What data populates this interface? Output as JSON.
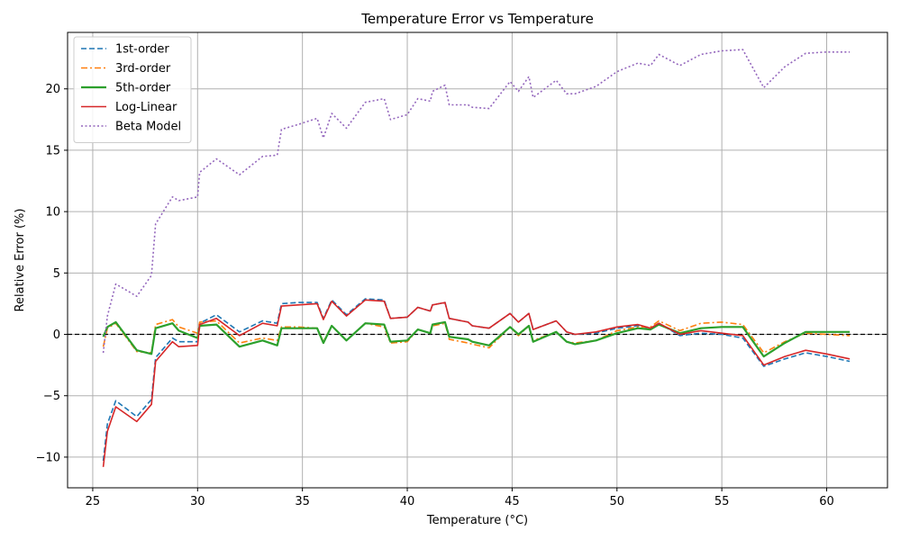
{
  "chart_data": {
    "type": "line",
    "title": "Temperature Error vs Temperature",
    "xlabel": "Temperature (°C)",
    "ylabel": "Relative Error (%)",
    "xlim": [
      23.8,
      62.9
    ],
    "ylim": [
      -12.5,
      24.6
    ],
    "xticks": [
      25,
      30,
      35,
      40,
      45,
      50,
      55,
      60
    ],
    "yticks": [
      -10,
      -5,
      0,
      5,
      10,
      15,
      20
    ],
    "grid": true,
    "legend_position": "top-left",
    "reference_line": {
      "y": 0,
      "style": "dashed",
      "color": "#000000"
    },
    "series": [
      {
        "name": "1st-order",
        "color": "#1f77b4",
        "dash": "dashed",
        "points": [
          [
            25.5,
            -10.3
          ],
          [
            25.7,
            -7.3
          ],
          [
            26.1,
            -5.4
          ],
          [
            27.1,
            -6.7
          ],
          [
            27.8,
            -5.3
          ],
          [
            28.0,
            -1.9
          ],
          [
            28.8,
            -0.3
          ],
          [
            29.1,
            -0.6
          ],
          [
            30.0,
            -0.6
          ],
          [
            30.1,
            0.9
          ],
          [
            30.9,
            1.6
          ],
          [
            32.0,
            0.2
          ],
          [
            33.1,
            1.1
          ],
          [
            33.8,
            0.9
          ],
          [
            34.0,
            2.5
          ],
          [
            34.8,
            2.6
          ],
          [
            35.7,
            2.6
          ],
          [
            36.0,
            1.3
          ],
          [
            36.4,
            2.8
          ],
          [
            37.1,
            1.6
          ],
          [
            38.0,
            2.9
          ],
          [
            38.9,
            2.8
          ],
          [
            39.2,
            1.3
          ],
          [
            40.0,
            1.4
          ],
          [
            40.5,
            2.2
          ],
          [
            41.1,
            1.9
          ],
          [
            41.2,
            2.4
          ],
          [
            41.8,
            2.6
          ],
          [
            42.0,
            1.3
          ],
          [
            42.9,
            1.0
          ],
          [
            43.1,
            0.7
          ],
          [
            43.9,
            0.5
          ],
          [
            44.9,
            1.7
          ],
          [
            45.3,
            1.0
          ],
          [
            45.8,
            1.7
          ],
          [
            46.0,
            0.4
          ],
          [
            47.1,
            1.1
          ],
          [
            47.6,
            0.2
          ],
          [
            48.0,
            0.0
          ],
          [
            49.0,
            0.1
          ],
          [
            50.0,
            0.5
          ],
          [
            51.0,
            0.7
          ],
          [
            51.6,
            0.5
          ],
          [
            52.0,
            0.9
          ],
          [
            53.0,
            -0.1
          ],
          [
            54.0,
            0.1
          ],
          [
            55.0,
            0.0
          ],
          [
            56.0,
            -0.3
          ],
          [
            57.0,
            -2.6
          ],
          [
            58.0,
            -2.0
          ],
          [
            59.0,
            -1.5
          ],
          [
            60.0,
            -1.8
          ],
          [
            61.1,
            -2.2
          ]
        ]
      },
      {
        "name": "3rd-order",
        "color": "#ff7f0e",
        "dash": "dashdot",
        "points": [
          [
            25.5,
            -1.0
          ],
          [
            25.7,
            0.5
          ],
          [
            26.1,
            0.9
          ],
          [
            27.1,
            -1.4
          ],
          [
            27.8,
            -1.5
          ],
          [
            28.0,
            0.8
          ],
          [
            28.8,
            1.2
          ],
          [
            29.1,
            0.6
          ],
          [
            30.0,
            0.1
          ],
          [
            30.1,
            1.0
          ],
          [
            30.9,
            1.1
          ],
          [
            32.0,
            -0.7
          ],
          [
            33.1,
            -0.3
          ],
          [
            33.8,
            -0.5
          ],
          [
            34.0,
            0.6
          ],
          [
            34.8,
            0.6
          ],
          [
            35.7,
            0.5
          ],
          [
            36.0,
            -0.6
          ],
          [
            36.4,
            0.7
          ],
          [
            37.1,
            -0.5
          ],
          [
            38.0,
            0.9
          ],
          [
            38.9,
            0.6
          ],
          [
            39.2,
            -0.7
          ],
          [
            40.0,
            -0.6
          ],
          [
            40.5,
            0.4
          ],
          [
            41.1,
            0.1
          ],
          [
            41.2,
            0.7
          ],
          [
            41.8,
            0.9
          ],
          [
            42.0,
            -0.4
          ],
          [
            42.9,
            -0.7
          ],
          [
            43.1,
            -0.8
          ],
          [
            43.9,
            -1.1
          ],
          [
            44.9,
            0.6
          ],
          [
            45.3,
            -0.1
          ],
          [
            45.8,
            0.7
          ],
          [
            46.0,
            -0.5
          ],
          [
            47.1,
            0.2
          ],
          [
            47.6,
            -0.6
          ],
          [
            48.0,
            -0.7
          ],
          [
            49.0,
            -0.5
          ],
          [
            50.0,
            0.3
          ],
          [
            51.0,
            0.6
          ],
          [
            51.6,
            0.6
          ],
          [
            52.0,
            1.1
          ],
          [
            53.0,
            0.3
          ],
          [
            54.0,
            0.9
          ],
          [
            55.0,
            1.0
          ],
          [
            56.0,
            0.8
          ],
          [
            57.0,
            -1.5
          ],
          [
            58.0,
            -0.6
          ],
          [
            59.0,
            0.1
          ],
          [
            60.0,
            0.0
          ],
          [
            61.1,
            -0.1
          ]
        ]
      },
      {
        "name": "5th-order",
        "color": "#2ca02c",
        "dash": "solid",
        "points": [
          [
            25.5,
            -0.2
          ],
          [
            25.7,
            0.6
          ],
          [
            26.1,
            1.0
          ],
          [
            27.1,
            -1.3
          ],
          [
            27.8,
            -1.6
          ],
          [
            28.0,
            0.5
          ],
          [
            28.8,
            0.9
          ],
          [
            29.1,
            0.3
          ],
          [
            30.0,
            -0.3
          ],
          [
            30.1,
            0.7
          ],
          [
            30.9,
            0.8
          ],
          [
            32.0,
            -1.0
          ],
          [
            33.1,
            -0.5
          ],
          [
            33.8,
            -0.9
          ],
          [
            34.0,
            0.5
          ],
          [
            34.8,
            0.5
          ],
          [
            35.7,
            0.5
          ],
          [
            36.0,
            -0.7
          ],
          [
            36.4,
            0.7
          ],
          [
            37.1,
            -0.5
          ],
          [
            38.0,
            0.9
          ],
          [
            38.9,
            0.8
          ],
          [
            39.2,
            -0.6
          ],
          [
            40.0,
            -0.5
          ],
          [
            40.5,
            0.4
          ],
          [
            41.1,
            0.1
          ],
          [
            41.2,
            0.8
          ],
          [
            41.8,
            1.0
          ],
          [
            42.0,
            -0.2
          ],
          [
            42.9,
            -0.4
          ],
          [
            43.1,
            -0.6
          ],
          [
            43.9,
            -0.9
          ],
          [
            44.9,
            0.6
          ],
          [
            45.3,
            0.0
          ],
          [
            45.8,
            0.7
          ],
          [
            46.0,
            -0.6
          ],
          [
            47.1,
            0.2
          ],
          [
            47.6,
            -0.6
          ],
          [
            48.0,
            -0.8
          ],
          [
            49.0,
            -0.5
          ],
          [
            50.0,
            0.1
          ],
          [
            51.0,
            0.5
          ],
          [
            51.6,
            0.4
          ],
          [
            52.0,
            0.8
          ],
          [
            53.0,
            0.1
          ],
          [
            54.0,
            0.5
          ],
          [
            55.0,
            0.6
          ],
          [
            56.0,
            0.6
          ],
          [
            57.0,
            -1.8
          ],
          [
            58.0,
            -0.7
          ],
          [
            59.0,
            0.2
          ],
          [
            60.0,
            0.2
          ],
          [
            61.1,
            0.2
          ]
        ]
      },
      {
        "name": "Log-Linear",
        "color": "#d62728",
        "dash": "solid",
        "points": [
          [
            25.5,
            -10.8
          ],
          [
            25.7,
            -7.9
          ],
          [
            26.1,
            -5.9
          ],
          [
            27.1,
            -7.1
          ],
          [
            27.8,
            -5.7
          ],
          [
            28.0,
            -2.2
          ],
          [
            28.8,
            -0.6
          ],
          [
            29.1,
            -1.0
          ],
          [
            30.0,
            -0.9
          ],
          [
            30.1,
            0.8
          ],
          [
            30.9,
            1.3
          ],
          [
            32.0,
            -0.1
          ],
          [
            33.1,
            0.9
          ],
          [
            33.8,
            0.7
          ],
          [
            34.0,
            2.3
          ],
          [
            34.8,
            2.4
          ],
          [
            35.7,
            2.5
          ],
          [
            36.0,
            1.2
          ],
          [
            36.4,
            2.7
          ],
          [
            37.1,
            1.5
          ],
          [
            38.0,
            2.8
          ],
          [
            38.9,
            2.7
          ],
          [
            39.2,
            1.3
          ],
          [
            40.0,
            1.4
          ],
          [
            40.5,
            2.2
          ],
          [
            41.1,
            1.9
          ],
          [
            41.2,
            2.4
          ],
          [
            41.8,
            2.6
          ],
          [
            42.0,
            1.3
          ],
          [
            42.9,
            1.0
          ],
          [
            43.1,
            0.7
          ],
          [
            43.9,
            0.5
          ],
          [
            44.9,
            1.7
          ],
          [
            45.3,
            1.0
          ],
          [
            45.8,
            1.7
          ],
          [
            46.0,
            0.4
          ],
          [
            47.1,
            1.1
          ],
          [
            47.6,
            0.2
          ],
          [
            48.0,
            0.0
          ],
          [
            49.0,
            0.2
          ],
          [
            50.0,
            0.6
          ],
          [
            51.0,
            0.8
          ],
          [
            51.6,
            0.5
          ],
          [
            52.0,
            0.9
          ],
          [
            53.0,
            0.0
          ],
          [
            54.0,
            0.3
          ],
          [
            55.0,
            0.1
          ],
          [
            56.0,
            -0.1
          ],
          [
            57.0,
            -2.5
          ],
          [
            58.0,
            -1.8
          ],
          [
            59.0,
            -1.3
          ],
          [
            60.0,
            -1.6
          ],
          [
            61.1,
            -2.0
          ]
        ]
      },
      {
        "name": "Beta Model",
        "color": "#9467bd",
        "dash": "dotted",
        "points": [
          [
            25.5,
            -1.5
          ],
          [
            25.7,
            1.5
          ],
          [
            26.1,
            4.1
          ],
          [
            27.1,
            3.1
          ],
          [
            27.8,
            4.8
          ],
          [
            28.0,
            9.0
          ],
          [
            28.8,
            11.2
          ],
          [
            29.1,
            10.9
          ],
          [
            30.0,
            11.2
          ],
          [
            30.1,
            13.2
          ],
          [
            30.9,
            14.3
          ],
          [
            32.0,
            13.0
          ],
          [
            33.1,
            14.5
          ],
          [
            33.8,
            14.6
          ],
          [
            34.0,
            16.7
          ],
          [
            34.8,
            17.1
          ],
          [
            35.7,
            17.6
          ],
          [
            36.0,
            16.0
          ],
          [
            36.4,
            18.0
          ],
          [
            37.1,
            16.8
          ],
          [
            38.0,
            18.9
          ],
          [
            38.9,
            19.2
          ],
          [
            39.2,
            17.5
          ],
          [
            40.0,
            17.9
          ],
          [
            40.5,
            19.2
          ],
          [
            41.1,
            19.0
          ],
          [
            41.2,
            19.8
          ],
          [
            41.8,
            20.3
          ],
          [
            42.0,
            18.7
          ],
          [
            42.9,
            18.7
          ],
          [
            43.1,
            18.5
          ],
          [
            43.9,
            18.4
          ],
          [
            44.9,
            20.6
          ],
          [
            45.3,
            19.8
          ],
          [
            45.8,
            21.0
          ],
          [
            46.0,
            19.3
          ],
          [
            47.1,
            20.7
          ],
          [
            47.6,
            19.6
          ],
          [
            48.0,
            19.6
          ],
          [
            49.0,
            20.2
          ],
          [
            50.0,
            21.4
          ],
          [
            51.0,
            22.1
          ],
          [
            51.6,
            21.9
          ],
          [
            52.0,
            22.8
          ],
          [
            53.0,
            21.9
          ],
          [
            54.0,
            22.8
          ],
          [
            55.0,
            23.1
          ],
          [
            56.0,
            23.2
          ],
          [
            57.0,
            20.1
          ],
          [
            58.0,
            21.8
          ],
          [
            59.0,
            22.9
          ],
          [
            60.0,
            23.0
          ],
          [
            61.1,
            23.0
          ]
        ]
      }
    ]
  }
}
